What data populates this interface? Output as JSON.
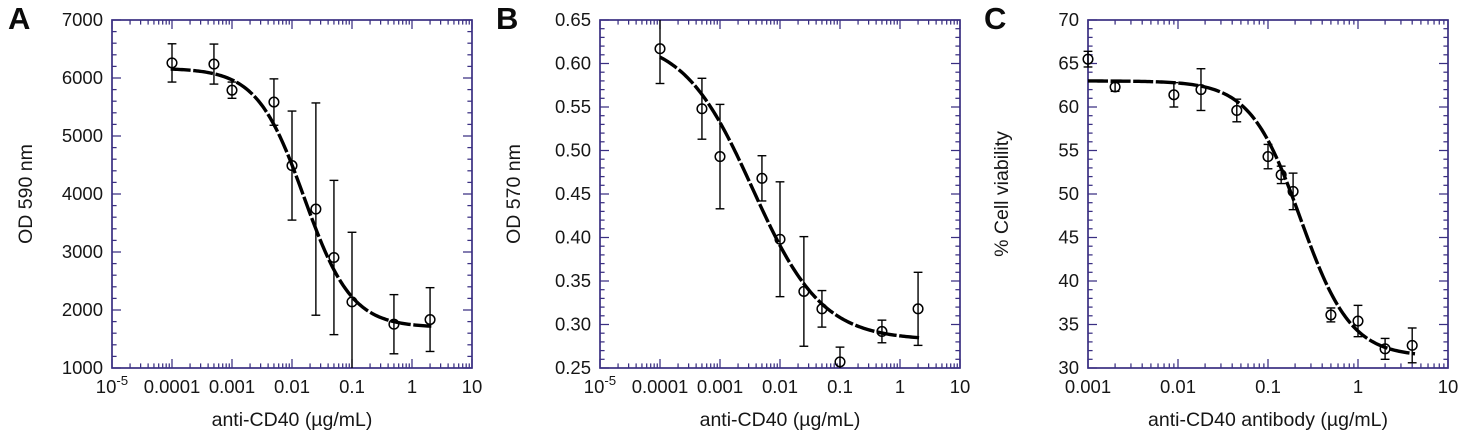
{
  "style": {
    "axis_color": "#3a2f82",
    "text_color": "#161616",
    "marker_color": "#000000",
    "curve_color": "#000000",
    "background": "#ffffff"
  },
  "chart_data": [
    {
      "panel": "A",
      "type": "scatter",
      "title": "",
      "xlabel": "anti-CD40 (µg/mL)",
      "ylabel": "OD 590 nm",
      "x_scale": "log",
      "x_log_min": -5,
      "x_log_max": 1,
      "x_tick_labels": [
        "10^-5",
        "0.0001",
        "0.001",
        "0.01",
        "0.1",
        "1",
        "10"
      ],
      "ylim": [
        1000,
        7000
      ],
      "y_major": 1000,
      "y_minor": 200,
      "y_decimals": 0,
      "grid": false,
      "legend": "none",
      "points": [
        {
          "x": 0.0001,
          "y": 6260,
          "e": 330
        },
        {
          "x": 0.0005,
          "y": 6240,
          "e": 345
        },
        {
          "x": 0.001,
          "y": 5790,
          "e": 140
        },
        {
          "x": 0.005,
          "y": 5585,
          "e": 400
        },
        {
          "x": 0.01,
          "y": 4490,
          "e": 940
        },
        {
          "x": 0.025,
          "y": 3740,
          "e": 1830
        },
        {
          "x": 0.05,
          "y": 2905,
          "e": 1330
        },
        {
          "x": 0.1,
          "y": 2140,
          "e": 1200
        },
        {
          "x": 0.5,
          "y": 1755,
          "e": 510
        },
        {
          "x": 2,
          "y": 1835,
          "e": 550
        }
      ],
      "fit": {
        "model": "4PL",
        "top": 6170,
        "bottom": 1700,
        "ec50": 0.016,
        "hill": 1.1,
        "x_start": 9.5e-05,
        "x_end": 2.1
      }
    },
    {
      "panel": "B",
      "type": "scatter",
      "title": "",
      "xlabel": "anti-CD40 (µg/mL)",
      "ylabel": "OD 570 nm",
      "x_scale": "log",
      "x_log_min": -5,
      "x_log_max": 1,
      "x_tick_labels": [
        "10^-5",
        "0.0001",
        "0.001",
        "0.01",
        "0.1",
        "1",
        "10"
      ],
      "ylim": [
        0.25,
        0.65
      ],
      "y_major": 0.05,
      "y_minor": 0.01,
      "y_decimals": 2,
      "grid": false,
      "legend": "none",
      "points": [
        {
          "x": 0.0001,
          "y": 0.617,
          "e": 0.04
        },
        {
          "x": 0.0005,
          "y": 0.548,
          "e": 0.035
        },
        {
          "x": 0.001,
          "y": 0.493,
          "e": 0.06
        },
        {
          "x": 0.005,
          "y": 0.468,
          "e": 0.026
        },
        {
          "x": 0.01,
          "y": 0.398,
          "e": 0.066
        },
        {
          "x": 0.025,
          "y": 0.338,
          "e": 0.063
        },
        {
          "x": 0.05,
          "y": 0.318,
          "e": 0.021
        },
        {
          "x": 0.1,
          "y": 0.257,
          "e": 0.017
        },
        {
          "x": 0.5,
          "y": 0.292,
          "e": 0.013
        },
        {
          "x": 2,
          "y": 0.318,
          "e": 0.042
        }
      ],
      "fit": {
        "model": "4PL",
        "top": 0.63,
        "bottom": 0.282,
        "ec50": 0.0035,
        "hill": 0.75,
        "x_start": 0.0001,
        "x_end": 2.2
      }
    },
    {
      "panel": "C",
      "type": "scatter",
      "title": "",
      "xlabel": "anti-CD40 antibody (µg/mL)",
      "ylabel": "% Cell viability",
      "x_scale": "log",
      "x_log_min": -3,
      "x_log_max": 1,
      "x_tick_labels": [
        "0.001",
        "0.01",
        "0.1",
        "1",
        "10"
      ],
      "ylim": [
        30,
        70
      ],
      "y_major": 5,
      "y_minor": 1,
      "y_decimals": 0,
      "grid": false,
      "legend": "none",
      "points": [
        {
          "x": 0.001,
          "y": 65.5,
          "e": 0.9
        },
        {
          "x": 0.002,
          "y": 62.3,
          "e": 0.5
        },
        {
          "x": 0.009,
          "y": 61.4,
          "e": 1.4
        },
        {
          "x": 0.018,
          "y": 62.0,
          "e": 2.4
        },
        {
          "x": 0.045,
          "y": 59.6,
          "e": 1.3
        },
        {
          "x": 0.1,
          "y": 54.3,
          "e": 1.4
        },
        {
          "x": 0.14,
          "y": 52.2,
          "e": 1.0
        },
        {
          "x": 0.19,
          "y": 50.3,
          "e": 2.1
        },
        {
          "x": 0.5,
          "y": 36.1,
          "e": 0.8
        },
        {
          "x": 1,
          "y": 35.4,
          "e": 1.8
        },
        {
          "x": 2,
          "y": 32.2,
          "e": 1.2
        },
        {
          "x": 4,
          "y": 32.6,
          "e": 2.0
        }
      ],
      "fit": {
        "model": "4PL",
        "top": 63,
        "bottom": 31.3,
        "ec50": 0.23,
        "hill": 1.55,
        "x_start": 0.001,
        "x_end": 4.3
      }
    }
  ]
}
